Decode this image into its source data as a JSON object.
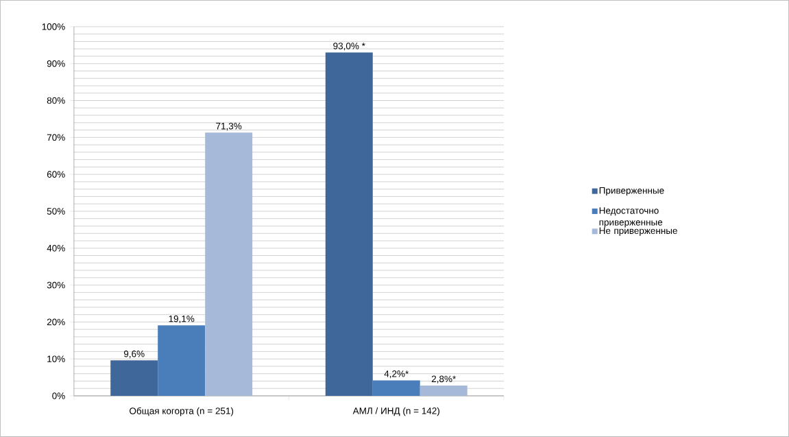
{
  "chart_data": {
    "type": "bar",
    "categories": [
      "Общая когорта (n = 251)",
      "АМЛ / ИНД (n = 142)"
    ],
    "series": [
      {
        "name": "Приверженные",
        "color": "#3f679a",
        "values": [
          9.6,
          93.0
        ],
        "value_labels": [
          "9,6%",
          "93,0% *"
        ]
      },
      {
        "name": "Недостаточно приверженные",
        "color": "#4a7ebb",
        "values": [
          19.1,
          4.2
        ],
        "value_labels": [
          "19,1%",
          "4,2%*"
        ]
      },
      {
        "name": "Не приверженные",
        "color": "#a7b9d9",
        "values": [
          71.3,
          2.8
        ],
        "value_labels": [
          "71,3%",
          "2,8%*"
        ]
      }
    ],
    "ylim": [
      0,
      100
    ],
    "yticks": [
      {
        "value": 0,
        "label": "0%"
      },
      {
        "value": 10,
        "label": "10%"
      },
      {
        "value": 20,
        "label": "20%"
      },
      {
        "value": 30,
        "label": "30%"
      },
      {
        "value": 40,
        "label": "40%"
      },
      {
        "value": 50,
        "label": "50%"
      },
      {
        "value": 60,
        "label": "60%"
      },
      {
        "value": 70,
        "label": "70%"
      },
      {
        "value": 80,
        "label": "80%"
      },
      {
        "value": 90,
        "label": "90%"
      },
      {
        "value": 100,
        "label": "100%"
      }
    ],
    "grid": "y",
    "legend": "right"
  }
}
